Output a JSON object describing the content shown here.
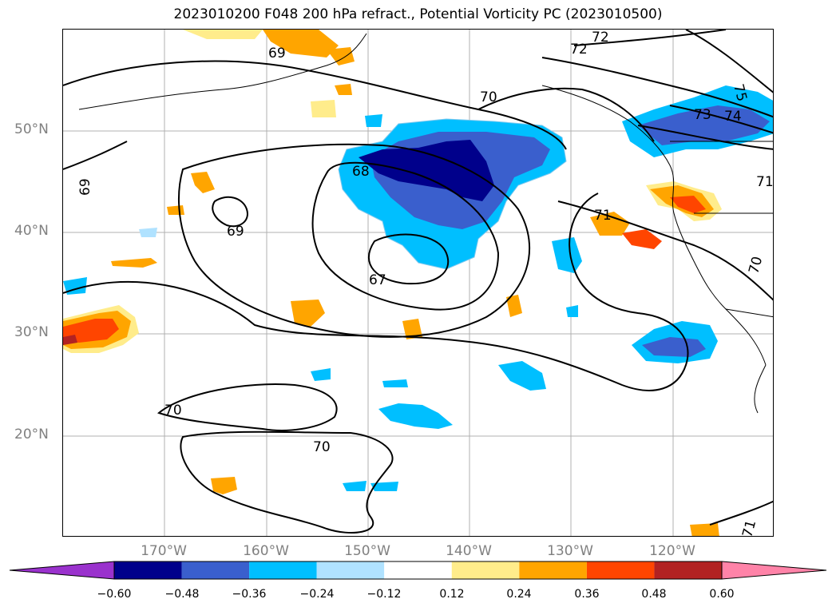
{
  "title": "2023010200 F048 200 hPa refract., Potential Vorticity PC (2023010500)",
  "lat_labels": [
    "50°N",
    "40°N",
    "30°N",
    "20°N"
  ],
  "lon_labels": [
    "170°W",
    "160°W",
    "150°W",
    "140°W",
    "130°W",
    "120°W"
  ],
  "contour_labels": [
    "72",
    "72",
    "69",
    "70",
    "75",
    "73",
    "74",
    "68",
    "69",
    "69",
    "71",
    "71",
    "70",
    "67",
    "70",
    "70",
    "71"
  ],
  "colorbar": {
    "ticks": [
      "−0.60",
      "−0.48",
      "−0.36",
      "−0.24",
      "−0.12",
      "0.12",
      "0.24",
      "0.36",
      "0.48",
      "0.60"
    ],
    "colors": [
      "#9a32cd",
      "#00008b",
      "#3a5fcd",
      "#00bfff",
      "#b0e2ff",
      "#ffffff",
      "#ffec8b",
      "#ffa500",
      "#ff4500",
      "#b22222",
      "#ff83a8"
    ]
  },
  "colors": {
    "grid": "#b0b0b0",
    "contour": "#000000",
    "axis_label": "#808080"
  }
}
